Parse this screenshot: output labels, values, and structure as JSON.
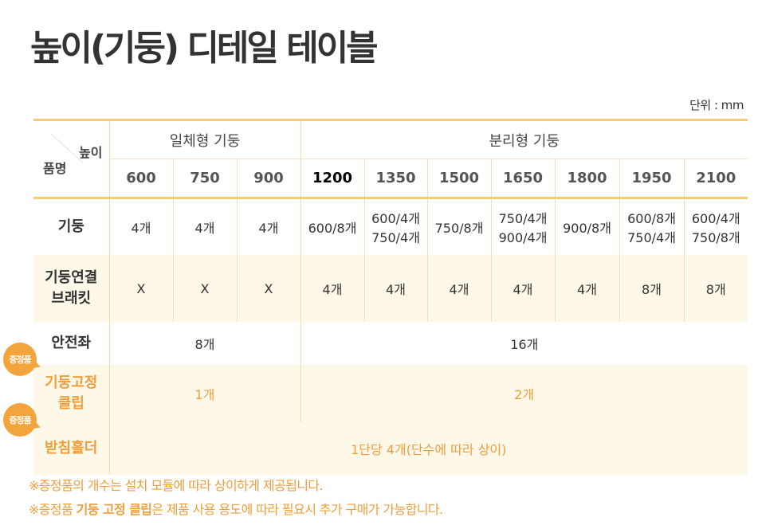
{
  "title": "높이(기둥) 디테일 테이블",
  "unit_label": "단위 : mm",
  "header": {
    "corner_height": "높이",
    "corner_product": "품명",
    "group_integrated": "일체형 기둥",
    "group_separated": "분리형 기둥",
    "heights": [
      "600",
      "750",
      "900",
      "1200",
      "1350",
      "1500",
      "1650",
      "1800",
      "1950",
      "2100"
    ]
  },
  "rows": {
    "pillar": {
      "label": "기둥",
      "cells": [
        "4개",
        "4개",
        "4개",
        "600/8개",
        [
          "600/4개",
          "750/4개"
        ],
        "750/8개",
        [
          "750/4개",
          "900/4개"
        ],
        "900/8개",
        [
          "600/8개",
          "750/4개"
        ],
        [
          "600/4개",
          "750/8개"
        ]
      ]
    },
    "bracket": {
      "label_line1": "기둥연결",
      "label_line2": "브래킷",
      "cells": [
        "X",
        "X",
        "X",
        "4개",
        "4개",
        "4개",
        "4개",
        "4개",
        "8개",
        "8개"
      ]
    },
    "seat": {
      "label": "안전좌",
      "integrated": "8개",
      "separated": "16개"
    },
    "clip": {
      "label_line1": "기둥고정",
      "label_line2": "클립",
      "integrated": "1개",
      "separated": "2개"
    },
    "holder": {
      "label": "받침홀더",
      "value": "1단당 4개(단수에 따라 상이)"
    }
  },
  "badges": [
    "증정품",
    "증정품"
  ],
  "notes": {
    "line1": "※증정품의 개수는 설치 모듈에 따라 상이하게 제공됩니다.",
    "line2_prefix": "※증정품 ",
    "line2_bold": "기둥 고정 클립",
    "line2_suffix": "은 제품 사용 용도에 따라 필요시 추가 구매가 가능합니다."
  },
  "colors": {
    "accent_orange": "#f19d3a",
    "badge_orange": "#f3a43c",
    "border_yellow": "#f6cb74",
    "row_tint": "#fef8e9"
  }
}
